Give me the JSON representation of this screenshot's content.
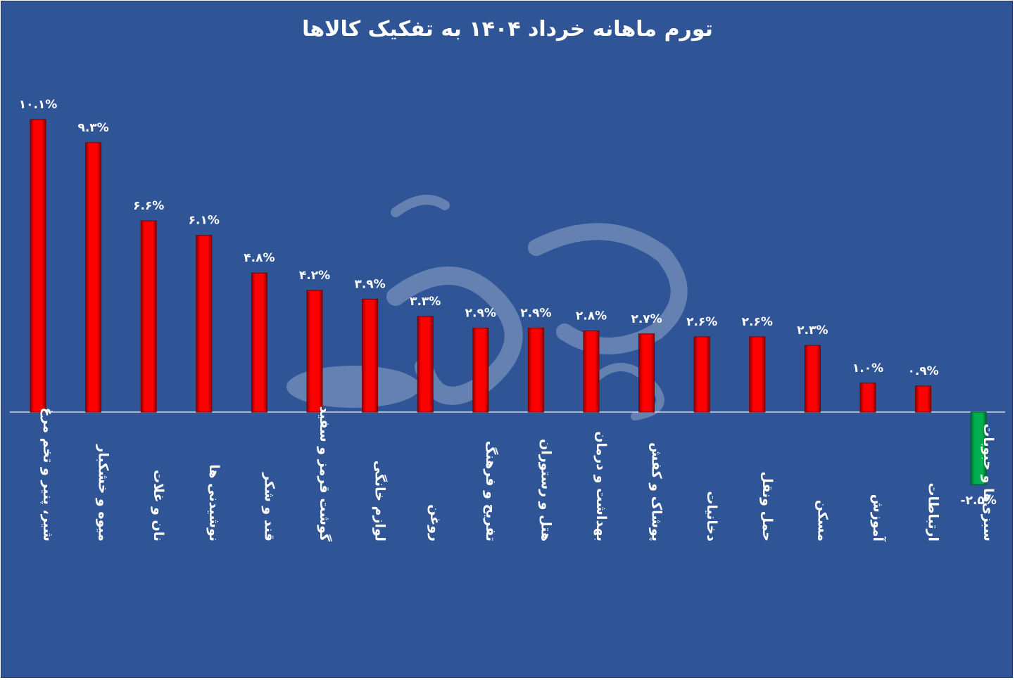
{
  "colors": {
    "background": "#2f5597",
    "positive_bar": "#ff0000",
    "negative_bar": "#00b050",
    "text": "#ffffff",
    "axis": "#d9d9d9"
  },
  "watermark": {
    "text": "جهان صنعت نیوز"
  },
  "chart_data": {
    "type": "bar",
    "title": "تورم ماهانه خرداد ۱۴۰۴ به تفکیک کالاها",
    "xlabel": "",
    "ylabel": "",
    "ylim": [
      -2.5,
      10.1
    ],
    "grid": false,
    "legend": "none",
    "categories": [
      "شیر، پنیر و تخم مرغ",
      "میوه و خشکبار",
      "نان و غلات",
      "نوشیدنی ها",
      "قند و شکر",
      "گوشت قرمز و سفید",
      "لوازم خانگی",
      "روغن",
      "تفریح و فرهنگ",
      "هتل و رستوران",
      "بهداشت و درمان",
      "پوشاک و کفش",
      "دخانیات",
      "حمل ونقل",
      "مسکن",
      "آموزش",
      "ارتباطات",
      "سبزی‌ها و حبوبات"
    ],
    "values": [
      10.1,
      9.3,
      6.6,
      6.1,
      4.8,
      4.2,
      3.9,
      3.3,
      2.9,
      2.9,
      2.8,
      2.7,
      2.6,
      2.6,
      2.3,
      1.0,
      0.9,
      -2.5
    ],
    "data_labels": [
      "۱۰.۱%",
      "۹.۳%",
      "۶.۶%",
      "۶.۱%",
      "۴.۸%",
      "۴.۲%",
      "۳.۹%",
      "۳.۳%",
      "۲.۹%",
      "۲.۹%",
      "۲.۸%",
      "۲.۷%",
      "۲.۶%",
      "۲.۶%",
      "۲.۳%",
      "۱.۰%",
      "۰.۹%",
      "-۲.۵%"
    ]
  }
}
